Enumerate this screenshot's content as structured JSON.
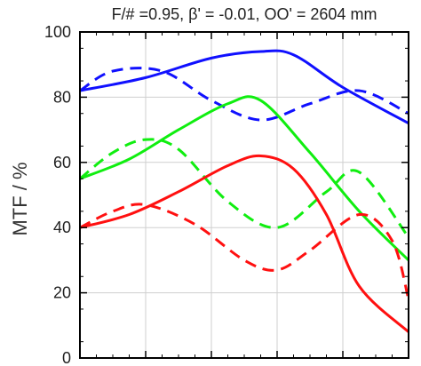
{
  "chart_data": {
    "type": "line",
    "title": "F/# =0.95, β' = -0.01, OO' = 2604 mm",
    "xlabel": "",
    "ylabel": "MTF / %",
    "ylim": [
      0,
      100
    ],
    "xlim": [
      0,
      1
    ],
    "yticks": [
      0,
      20,
      40,
      60,
      80,
      100
    ],
    "ytick_labels": [
      "0",
      "20",
      "40",
      "60",
      "80",
      "100"
    ],
    "grid": true,
    "series": [
      {
        "color": "#1010ff",
        "style": "solid",
        "x": [
          0,
          0.2,
          0.4,
          0.55,
          0.65,
          0.8,
          1.0
        ],
        "y": [
          82,
          86,
          92,
          94,
          93,
          83,
          72
        ]
      },
      {
        "color": "#1010ff",
        "style": "dashed",
        "x": [
          0,
          0.1,
          0.25,
          0.4,
          0.55,
          0.7,
          0.85,
          1.0
        ],
        "y": [
          82,
          88,
          88,
          79,
          73,
          78,
          82,
          75
        ]
      },
      {
        "color": "#10ee10",
        "style": "solid",
        "x": [
          0,
          0.15,
          0.3,
          0.45,
          0.55,
          0.7,
          0.85,
          1.0
        ],
        "y": [
          55,
          61,
          70,
          78,
          79,
          63,
          45,
          30
        ]
      },
      {
        "color": "#10ee10",
        "style": "dashed",
        "x": [
          0,
          0.1,
          0.2,
          0.3,
          0.45,
          0.6,
          0.75,
          0.85,
          1.0
        ],
        "y": [
          55,
          63,
          67,
          64,
          48,
          40,
          51,
          57,
          37
        ]
      },
      {
        "color": "#ff1010",
        "style": "solid",
        "x": [
          0,
          0.15,
          0.3,
          0.45,
          0.55,
          0.65,
          0.75,
          0.85,
          1.0
        ],
        "y": [
          40,
          44,
          51,
          59,
          62,
          58,
          44,
          22,
          8
        ]
      },
      {
        "color": "#ff1010",
        "style": "dashed",
        "x": [
          0,
          0.1,
          0.2,
          0.35,
          0.5,
          0.6,
          0.7,
          0.85,
          0.95,
          1.0
        ],
        "y": [
          40,
          45,
          47,
          41,
          30,
          27,
          33,
          44,
          36,
          18
        ]
      }
    ]
  }
}
